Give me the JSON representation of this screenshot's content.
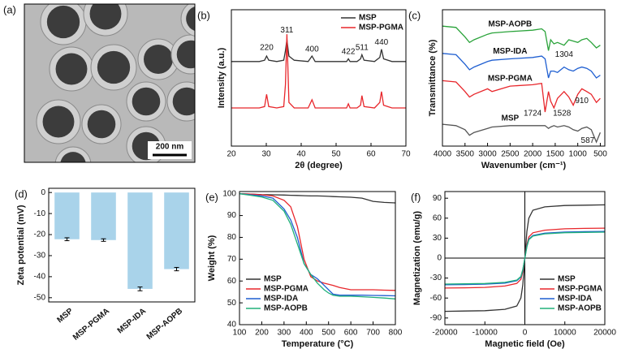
{
  "chart_data": [
    {
      "type": "image",
      "label": "(a)",
      "scale_bar": "200 nm"
    },
    {
      "type": "line",
      "label": "(b)",
      "xlabel": "2θ (degree)",
      "ylabel": "Intensity (a.u.)",
      "x": [
        20,
        24,
        28,
        29.5,
        30.1,
        30.7,
        33,
        35,
        35.5,
        35.9,
        36.5,
        38,
        42,
        43.1,
        44,
        48,
        53,
        53.5,
        54,
        56,
        57,
        57.4,
        58,
        61,
        62.5,
        63,
        63.6,
        66,
        70
      ],
      "series": [
        {
          "name": "MSP",
          "color": "#333333",
          "values": [
            62,
            62,
            62,
            63,
            66,
            63,
            62,
            63,
            70,
            78,
            66,
            63,
            62,
            66,
            62,
            62,
            62,
            64,
            62,
            62,
            64,
            67,
            63,
            62,
            65,
            71,
            64,
            62,
            62
          ]
        },
        {
          "name": "MSP-PGMA",
          "color": "#e8262b",
          "values": [
            28,
            28,
            28,
            29,
            38,
            29,
            28,
            29,
            45,
            82,
            32,
            28,
            28,
            34,
            28,
            28,
            28,
            31,
            28,
            28,
            30,
            37,
            29,
            28,
            32,
            40,
            30,
            28,
            28
          ]
        }
      ],
      "annotations": [
        {
          "text": "220",
          "x": 30.1,
          "y": 72
        },
        {
          "text": "311",
          "x": 35.9,
          "y": 85
        },
        {
          "text": "400",
          "x": 43.1,
          "y": 71
        },
        {
          "text": "422",
          "x": 53.5,
          "y": 69
        },
        {
          "text": "511",
          "x": 57.4,
          "y": 72
        },
        {
          "text": "440",
          "x": 63,
          "y": 76
        }
      ],
      "xlim": [
        20,
        70
      ],
      "ylim": [
        0,
        100
      ],
      "xticks": [
        20,
        30,
        40,
        50,
        60,
        70
      ],
      "legend": "upper right"
    },
    {
      "type": "line",
      "label": "(c)",
      "xlabel": "Wavenumber (cm⁻¹)",
      "ylabel": "Transmittance (%)",
      "x": [
        4000,
        3700,
        3500,
        3400,
        3300,
        3000,
        2900,
        2500,
        2000,
        1800,
        1724,
        1650,
        1600,
        1528,
        1450,
        1304,
        1200,
        1100,
        1000,
        910,
        800,
        700,
        587,
        500
      ],
      "series": [
        {
          "name": "MSP-AOPB",
          "color": "#2aa33a",
          "values": [
            88,
            87,
            80,
            76,
            78,
            82,
            83,
            84,
            85,
            86,
            84,
            70,
            78,
            75,
            76,
            74,
            78,
            77,
            76,
            78,
            79,
            76,
            72,
            74
          ]
        },
        {
          "name": "MSP-IDA",
          "color": "#1f5fd1",
          "values": [
            68,
            67,
            60,
            56,
            58,
            62,
            63,
            64,
            65,
            66,
            64,
            50,
            55,
            55,
            54,
            58,
            56,
            55,
            57,
            58,
            57,
            55,
            50,
            52
          ]
        },
        {
          "name": "MSP-PGMA",
          "color": "#e8262b",
          "values": [
            48,
            47,
            40,
            36,
            38,
            42,
            40,
            44,
            45,
            46,
            25,
            40,
            33,
            28,
            35,
            40,
            36,
            30,
            38,
            42,
            40,
            38,
            32,
            35
          ]
        },
        {
          "name": "MSP",
          "color": "#555555",
          "values": [
            16,
            15,
            12,
            8,
            10,
            13,
            14,
            15,
            15,
            15,
            15,
            13,
            14,
            15,
            14,
            15,
            14,
            12,
            11,
            13,
            14,
            12,
            3,
            10
          ]
        }
      ],
      "annotations": [
        {
          "text": "1304",
          "x": 1304,
          "y": 67
        },
        {
          "text": "910",
          "x": 910,
          "y": 33
        },
        {
          "text": "1724",
          "x": 2000,
          "y": 24
        },
        {
          "text": "1528",
          "x": 1350,
          "y": 24
        },
        {
          "text": "587",
          "x": 780,
          "y": 4
        }
      ],
      "xlim": [
        4000,
        400
      ],
      "ylim": [
        0,
        100
      ],
      "xticks": [
        4000,
        3500,
        3000,
        2500,
        2000,
        1500,
        1000,
        500
      ],
      "legend": "inline"
    },
    {
      "type": "bar",
      "label": "(d)",
      "ylabel": "Zeta potential (mV)",
      "categories": [
        "MSP",
        "MSP-PGMA",
        "MSP-IDA",
        "MSP-AOPB"
      ],
      "values": [
        -22.2,
        -22.6,
        -45.8,
        -36.4
      ],
      "errors": [
        0.7,
        0.6,
        0.9,
        0.8
      ],
      "color": "#a9d3ea",
      "ylim": [
        -52,
        2
      ],
      "yticks": [
        -50,
        -40,
        -30,
        -20,
        -10,
        0
      ]
    },
    {
      "type": "line",
      "label": "(e)",
      "xlabel": "Temperature (°C)",
      "ylabel": "Weight (%)",
      "x": [
        100,
        150,
        200,
        250,
        300,
        330,
        360,
        390,
        420,
        450,
        480,
        500,
        520,
        550,
        600,
        650,
        700,
        750,
        800
      ],
      "series": [
        {
          "name": "MSP",
          "color": "#333333",
          "values": [
            100,
            99.8,
            99.6,
            99.5,
            99.4,
            99.3,
            99.2,
            99.1,
            99,
            99,
            98.9,
            98.8,
            98.7,
            98.6,
            98.4,
            98,
            96.5,
            96,
            95.8
          ]
        },
        {
          "name": "MSP-PGMA",
          "color": "#e8262b",
          "values": [
            100,
            99.8,
            99.5,
            99,
            97,
            94,
            85,
            70,
            62,
            60,
            59,
            58.5,
            58,
            57,
            56,
            56,
            56,
            55.8,
            55.7
          ]
        },
        {
          "name": "MSP-IDA",
          "color": "#1f5fd1",
          "values": [
            100,
            99.5,
            99,
            98,
            93,
            88,
            80,
            68,
            63,
            61,
            58,
            56,
            54,
            53.5,
            53.5,
            53.5,
            53.4,
            53.3,
            53.2
          ]
        },
        {
          "name": "MSP-AOPB",
          "color": "#20b07a",
          "values": [
            100,
            99.3,
            98.5,
            97,
            92,
            86,
            77,
            68,
            63,
            59,
            56,
            54.5,
            53.5,
            53,
            53,
            52.8,
            52.5,
            52.2,
            51.8
          ]
        }
      ],
      "xlim": [
        100,
        800
      ],
      "ylim": [
        40,
        101
      ],
      "xticks": [
        100,
        200,
        300,
        400,
        500,
        600,
        700,
        800
      ],
      "yticks": [
        40,
        50,
        60,
        70,
        80,
        90,
        100
      ],
      "legend": "lower left"
    },
    {
      "type": "line",
      "label": "(f)",
      "xlabel": "Magnetic field (Oe)",
      "ylabel": "Magnetization (emu/g)",
      "x": [
        -20000,
        -15000,
        -10000,
        -5000,
        -2000,
        -1000,
        -500,
        0,
        500,
        1000,
        2000,
        5000,
        10000,
        15000,
        20000
      ],
      "series": [
        {
          "name": "MSP",
          "color": "#333333",
          "values": [
            -80,
            -79.5,
            -79,
            -77,
            -72,
            -60,
            -40,
            0,
            40,
            60,
            72,
            77,
            79,
            79.5,
            80
          ]
        },
        {
          "name": "MSP-PGMA",
          "color": "#e8262b",
          "values": [
            -45,
            -44.6,
            -44,
            -42,
            -38,
            -32,
            -20,
            0,
            20,
            32,
            38,
            42,
            44,
            44.6,
            45
          ]
        },
        {
          "name": "MSP-IDA",
          "color": "#1f5fd1",
          "values": [
            -40,
            -39.7,
            -39.2,
            -37.5,
            -34,
            -28.5,
            -18,
            0,
            18,
            28.5,
            34,
            37.5,
            39.2,
            39.7,
            40
          ]
        },
        {
          "name": "MSP-AOPB",
          "color": "#20b07a",
          "values": [
            -39,
            -38.7,
            -38.2,
            -36.5,
            -33,
            -27.5,
            -17,
            0,
            17,
            27.5,
            33,
            36.5,
            38.2,
            38.7,
            39
          ]
        }
      ],
      "xlim": [
        -20000,
        20000
      ],
      "ylim": [
        -100,
        100
      ],
      "xticks": [
        -20000,
        -10000,
        0,
        10000,
        20000
      ],
      "yticks": [
        -90,
        -60,
        -30,
        0,
        30,
        60,
        90
      ],
      "legend": "lower right",
      "zero_lines": true
    }
  ]
}
